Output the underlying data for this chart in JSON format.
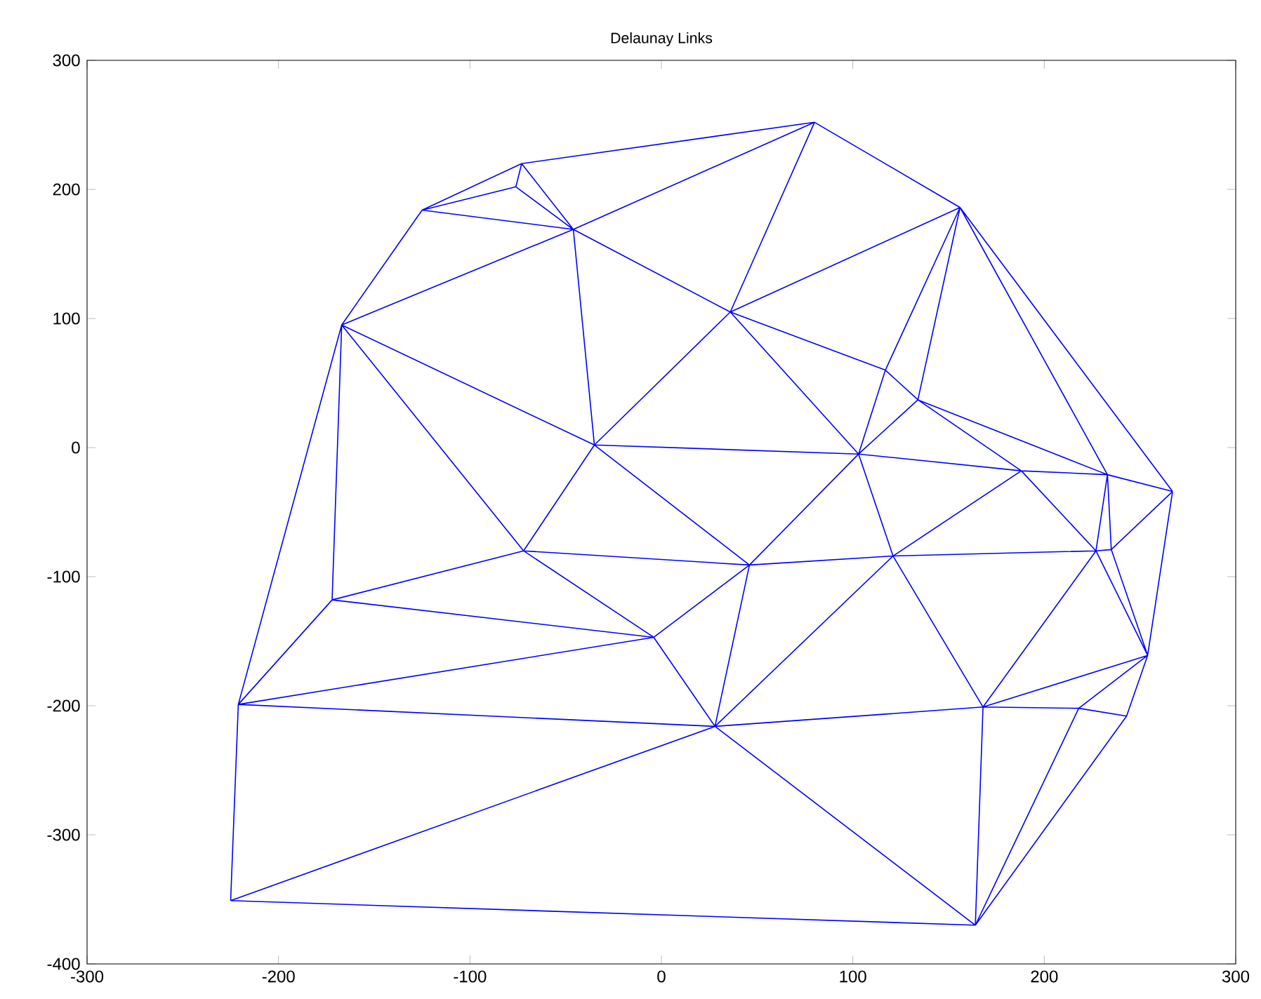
{
  "chart_data": {
    "type": "line",
    "title": "Delaunay Links",
    "color": "#0000ff",
    "xlim": [
      -300,
      300
    ],
    "xticks": [
      -300,
      -200,
      -100,
      0,
      100,
      200,
      300
    ],
    "ylim": [
      -400,
      300
    ],
    "yticks": [
      -400,
      -300,
      -200,
      -100,
      0,
      100,
      200,
      300
    ],
    "grid": false,
    "series": [
      {
        "x": [
          80,
          -73,
          null,
          80,
          -46,
          null,
          80,
          36,
          null,
          80,
          156,
          null,
          -73,
          -125,
          null,
          -73,
          -76,
          null,
          -73,
          -46,
          null,
          -76,
          -125,
          null,
          -76,
          -46,
          null,
          -125,
          -46,
          null,
          -125,
          -167,
          null,
          -46,
          -167,
          null,
          -46,
          36,
          null,
          -46,
          -35,
          null,
          156,
          36,
          null,
          156,
          117,
          null,
          156,
          134,
          null,
          156,
          233,
          null,
          156,
          267,
          null,
          36,
          -35,
          null,
          36,
          103,
          null,
          36,
          117,
          null,
          -167,
          -35,
          null,
          -167,
          -72,
          null,
          -167,
          -172,
          null,
          -167,
          -221,
          null,
          117,
          134,
          null,
          117,
          103,
          null,
          134,
          103,
          null,
          134,
          188,
          null,
          134,
          233,
          null,
          -35,
          103,
          null,
          -35,
          -72,
          null,
          -35,
          46,
          null,
          103,
          46,
          null,
          103,
          121,
          null,
          103,
          188,
          null,
          188,
          233,
          null,
          188,
          227,
          null,
          188,
          121,
          null,
          233,
          227,
          null,
          233,
          235,
          null,
          233,
          267,
          null,
          267,
          235,
          null,
          267,
          254,
          null,
          -72,
          46,
          null,
          -72,
          -172,
          null,
          -72,
          -4,
          null,
          46,
          121,
          null,
          46,
          -4,
          null,
          46,
          28,
          null,
          121,
          227,
          null,
          121,
          168,
          null,
          121,
          28,
          null,
          227,
          235,
          null,
          227,
          254,
          null,
          227,
          168,
          null,
          235,
          254,
          null,
          -172,
          -4,
          null,
          -172,
          -221,
          null,
          -4,
          -221,
          null,
          -4,
          28,
          null,
          254,
          168,
          null,
          254,
          218,
          null,
          254,
          243,
          null,
          -221,
          28,
          null,
          -221,
          -225,
          null,
          28,
          168,
          null,
          28,
          -225,
          null,
          28,
          164,
          null,
          168,
          218,
          null,
          168,
          164,
          null,
          218,
          243,
          null,
          218,
          164,
          null,
          243,
          164,
          null,
          -225,
          164
        ],
        "values": [
          252,
          220,
          null,
          252,
          169,
          null,
          252,
          105,
          null,
          252,
          186,
          null,
          220,
          184,
          null,
          220,
          202,
          null,
          220,
          169,
          null,
          202,
          184,
          null,
          202,
          169,
          null,
          184,
          169,
          null,
          184,
          95,
          null,
          169,
          95,
          null,
          169,
          105,
          null,
          169,
          2,
          null,
          186,
          105,
          null,
          186,
          60,
          null,
          186,
          37,
          null,
          186,
          -21,
          null,
          186,
          -34,
          null,
          105,
          2,
          null,
          105,
          -5,
          null,
          105,
          60,
          null,
          95,
          2,
          null,
          95,
          -80,
          null,
          95,
          -118,
          null,
          95,
          -199,
          null,
          60,
          37,
          null,
          60,
          -5,
          null,
          37,
          -5,
          null,
          37,
          -18,
          null,
          37,
          -21,
          null,
          2,
          -5,
          null,
          2,
          -80,
          null,
          2,
          -91,
          null,
          -5,
          -91,
          null,
          -5,
          -84,
          null,
          -5,
          -18,
          null,
          -18,
          -21,
          null,
          -18,
          -80,
          null,
          -18,
          -84,
          null,
          -21,
          -80,
          null,
          -21,
          -79,
          null,
          -21,
          -34,
          null,
          -34,
          -79,
          null,
          -34,
          -161,
          null,
          -80,
          -91,
          null,
          -80,
          -118,
          null,
          -80,
          -147,
          null,
          -91,
          -84,
          null,
          -91,
          -147,
          null,
          -91,
          -216,
          null,
          -84,
          -80,
          null,
          -84,
          -201,
          null,
          -84,
          -216,
          null,
          -80,
          -79,
          null,
          -80,
          -161,
          null,
          -80,
          -201,
          null,
          -79,
          -161,
          null,
          -118,
          -147,
          null,
          -118,
          -199,
          null,
          -147,
          -199,
          null,
          -147,
          -216,
          null,
          -161,
          -201,
          null,
          -161,
          -202,
          null,
          -161,
          -208,
          null,
          -199,
          -216,
          null,
          -199,
          -351,
          null,
          -216,
          -201,
          null,
          -216,
          -351,
          null,
          -216,
          -370,
          null,
          -201,
          -202,
          null,
          -201,
          -370,
          null,
          -202,
          -208,
          null,
          -202,
          -370,
          null,
          -208,
          -370,
          null,
          -351,
          -370
        ]
      }
    ]
  }
}
